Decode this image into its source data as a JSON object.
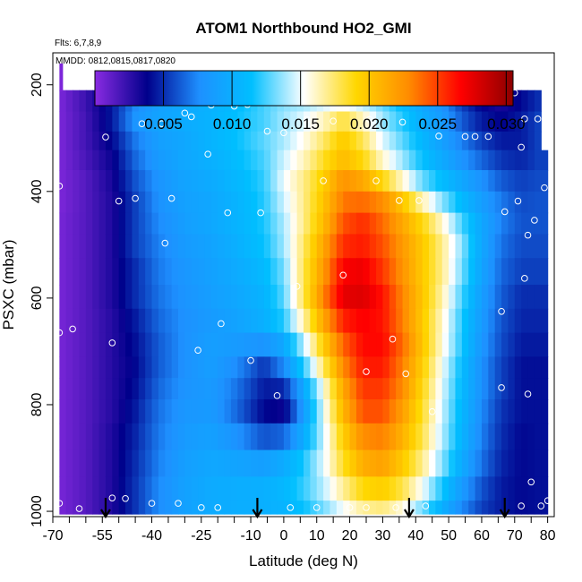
{
  "chart_data": {
    "type": "heatmap",
    "title": "ATOM1 Northbound HO2_GMI",
    "flights_note": "Flts: 6,7,8,9",
    "dates_note": "MMDD: 0812,0815,0817,0820",
    "xlabel": "Latitude (deg N)",
    "ylabel": "PSXC (mbar)",
    "xlim": [
      -70,
      82
    ],
    "ylim": [
      1010,
      140
    ],
    "x_ticks": [
      -70,
      -55,
      -40,
      -25,
      -10,
      0,
      10,
      20,
      30,
      40,
      50,
      60,
      70,
      80
    ],
    "x_tick_labels": [
      "-70",
      "-55",
      "-40",
      "-25",
      "-10",
      "0",
      "10",
      "20",
      "30",
      "40",
      "50",
      "60",
      "70",
      "80"
    ],
    "x_minor_ticks": [
      -65,
      -60,
      -50,
      -45,
      -35,
      -30,
      -20,
      -15,
      -5,
      5,
      15,
      25,
      35,
      45,
      55,
      65,
      75
    ],
    "y_ticks": [
      200,
      400,
      600,
      800,
      1000
    ],
    "y_tick_labels": [
      "200",
      "400",
      "600",
      "800",
      "1000"
    ],
    "colorbar": {
      "range": [
        0,
        0.0305
      ],
      "ticks": [
        0.005,
        0.01,
        0.015,
        0.02,
        0.025,
        0.03
      ],
      "tick_labels": [
        "0.005",
        "0.010",
        "0.015",
        "0.020",
        "0.025",
        "0.030"
      ],
      "colors": [
        "#8a2be2",
        "#00008b",
        "#1e90ff",
        "#00bfff",
        "#ffffff",
        "#ffd700",
        "#ff8c00",
        "#ff0000",
        "#8b0000"
      ]
    },
    "grid": false,
    "pressure_levels": [
      230,
      270,
      305,
      340,
      380,
      420,
      460,
      500,
      550,
      600,
      640,
      690,
      730,
      770,
      810,
      860,
      910,
      960,
      1000
    ],
    "column_lats": [
      -68,
      -60,
      -52,
      -45,
      -38,
      -30,
      -22,
      -14,
      -6,
      0,
      6,
      12,
      18,
      24,
      30,
      36,
      42,
      48,
      54,
      60,
      66,
      72,
      77
    ],
    "field_values": [
      [
        0.0004,
        0.0022,
        0.0045,
        0.0075,
        0.009,
        0.0096,
        0.0104,
        0.0112,
        0.0125,
        0.0135,
        0.014,
        0.0148,
        0.0155,
        0.0145,
        0.013,
        0.0112,
        0.0095,
        0.008,
        0.0055,
        0.0038,
        0.0032,
        0.004,
        0.005
      ],
      [
        0.0004,
        0.002,
        0.0045,
        0.008,
        0.0092,
        0.0098,
        0.0105,
        0.0115,
        0.0125,
        0.0138,
        0.0148,
        0.0162,
        0.0182,
        0.0162,
        0.0138,
        0.012,
        0.01,
        0.0085,
        0.0062,
        0.0045,
        0.0038,
        0.0045,
        0.0055
      ],
      [
        0.0004,
        0.002,
        0.004,
        0.007,
        0.0088,
        0.0095,
        0.0105,
        0.0115,
        0.0128,
        0.014,
        0.0155,
        0.0175,
        0.0198,
        0.0178,
        0.0148,
        0.0128,
        0.0108,
        0.009,
        0.0072,
        0.0055,
        0.0045,
        0.0045,
        0.0055
      ],
      [
        0.0004,
        0.0018,
        0.0035,
        0.0065,
        0.0085,
        0.0095,
        0.0102,
        0.0112,
        0.0125,
        0.0145,
        0.0162,
        0.0185,
        0.0205,
        0.019,
        0.016,
        0.0138,
        0.0115,
        0.0098,
        0.008,
        0.0065,
        0.0052,
        0.0048,
        0.0055
      ],
      [
        0.0004,
        0.0015,
        0.0032,
        0.006,
        0.008,
        0.0092,
        0.0098,
        0.0108,
        0.0122,
        0.015,
        0.017,
        0.0195,
        0.0225,
        0.0215,
        0.019,
        0.016,
        0.013,
        0.0112,
        0.0095,
        0.0078,
        0.0062,
        0.0055,
        0.0058
      ],
      [
        0.0004,
        0.0015,
        0.003,
        0.0055,
        0.0078,
        0.009,
        0.0095,
        0.0105,
        0.012,
        0.0145,
        0.017,
        0.02,
        0.0235,
        0.0238,
        0.0228,
        0.02,
        0.0165,
        0.0135,
        0.011,
        0.0088,
        0.007,
        0.0058,
        0.006
      ],
      [
        0.0005,
        0.0015,
        0.003,
        0.0055,
        0.0075,
        0.0088,
        0.0095,
        0.0105,
        0.0118,
        0.014,
        0.017,
        0.0205,
        0.0245,
        0.0255,
        0.0238,
        0.0215,
        0.019,
        0.016,
        0.0125,
        0.0095,
        0.0072,
        0.006,
        0.006
      ],
      [
        0.0005,
        0.0015,
        0.003,
        0.0055,
        0.0072,
        0.0085,
        0.0092,
        0.0102,
        0.0115,
        0.0138,
        0.0175,
        0.0215,
        0.0255,
        0.026,
        0.0245,
        0.0222,
        0.0198,
        0.017,
        0.0135,
        0.0095,
        0.0068,
        0.0058,
        0.0058
      ],
      [
        0.0005,
        0.0015,
        0.003,
        0.005,
        0.007,
        0.0082,
        0.009,
        0.0098,
        0.011,
        0.0132,
        0.0178,
        0.0222,
        0.0268,
        0.0272,
        0.0252,
        0.0225,
        0.0198,
        0.017,
        0.0132,
        0.0092,
        0.0065,
        0.0055,
        0.0055
      ],
      [
        0.0005,
        0.0015,
        0.003,
        0.005,
        0.0068,
        0.008,
        0.0088,
        0.0095,
        0.0105,
        0.0128,
        0.0178,
        0.023,
        0.0275,
        0.0278,
        0.0262,
        0.023,
        0.02,
        0.0165,
        0.0125,
        0.0088,
        0.0062,
        0.005,
        0.005
      ],
      [
        0.0005,
        0.0015,
        0.0028,
        0.0045,
        0.0065,
        0.0078,
        0.0085,
        0.0092,
        0.0102,
        0.012,
        0.0165,
        0.0215,
        0.0258,
        0.0268,
        0.0262,
        0.0232,
        0.0198,
        0.016,
        0.012,
        0.0085,
        0.006,
        0.0048,
        0.0048
      ],
      [
        0.0005,
        0.0015,
        0.0028,
        0.0042,
        0.0062,
        0.0078,
        0.0088,
        0.0085,
        0.008,
        0.0095,
        0.0142,
        0.0195,
        0.024,
        0.0265,
        0.0265,
        0.0238,
        0.02,
        0.0158,
        0.0118,
        0.0082,
        0.0058,
        0.0045,
        0.0045
      ],
      [
        0.0005,
        0.0015,
        0.0028,
        0.004,
        0.0062,
        0.0078,
        0.0088,
        0.0075,
        0.0052,
        0.0075,
        0.012,
        0.0175,
        0.0228,
        0.026,
        0.026,
        0.0232,
        0.0195,
        0.0152,
        0.0112,
        0.0078,
        0.0055,
        0.0042,
        0.0042
      ],
      [
        0.0005,
        0.0015,
        0.0028,
        0.0042,
        0.0065,
        0.008,
        0.0085,
        0.0068,
        0.0045,
        0.0048,
        0.0095,
        0.0155,
        0.0215,
        0.0252,
        0.0252,
        0.0228,
        0.019,
        0.0148,
        0.011,
        0.0078,
        0.0055,
        0.0042,
        0.0042
      ],
      [
        0.0005,
        0.0015,
        0.0028,
        0.0045,
        0.0068,
        0.0082,
        0.0085,
        0.0065,
        0.004,
        0.0035,
        0.0085,
        0.0148,
        0.0208,
        0.0245,
        0.0245,
        0.022,
        0.0185,
        0.0145,
        0.0108,
        0.0075,
        0.0052,
        0.0042,
        0.0042
      ],
      [
        0.0005,
        0.0015,
        0.003,
        0.0048,
        0.007,
        0.0085,
        0.009,
        0.0078,
        0.006,
        0.0065,
        0.0098,
        0.0145,
        0.0195,
        0.0228,
        0.0232,
        0.021,
        0.018,
        0.0142,
        0.0105,
        0.0072,
        0.005,
        0.004,
        0.0042
      ],
      [
        0.0005,
        0.0015,
        0.003,
        0.005,
        0.0072,
        0.0088,
        0.0095,
        0.0092,
        0.0088,
        0.0098,
        0.0118,
        0.0148,
        0.0185,
        0.0212,
        0.0218,
        0.0198,
        0.017,
        0.0135,
        0.0098,
        0.0068,
        0.0048,
        0.004,
        0.0042
      ],
      [
        0.0005,
        0.0015,
        0.003,
        0.0052,
        0.0075,
        0.009,
        0.0098,
        0.01,
        0.0102,
        0.0108,
        0.0122,
        0.0142,
        0.0168,
        0.019,
        0.0195,
        0.018,
        0.0152,
        0.0118,
        0.0085,
        0.006,
        0.0045,
        0.004,
        0.0042
      ],
      [
        0.0005,
        0.0015,
        0.003,
        0.0052,
        0.0075,
        0.009,
        0.0098,
        0.01,
        0.0102,
        0.0105,
        0.0115,
        0.0132,
        0.0152,
        0.0168,
        0.0172,
        0.0158,
        0.0132,
        0.0102,
        0.0075,
        0.0055,
        0.0045,
        0.004,
        0.0042
      ]
    ],
    "obs_points": [
      {
        "lat": -68,
        "p": 390
      },
      {
        "lat": -68,
        "p": 665
      },
      {
        "lat": -68,
        "p": 985
      },
      {
        "lat": -64,
        "p": 658
      },
      {
        "lat": -62,
        "p": 995
      },
      {
        "lat": -54,
        "p": 298
      },
      {
        "lat": -52,
        "p": 684
      },
      {
        "lat": -52,
        "p": 975
      },
      {
        "lat": -50,
        "p": 418
      },
      {
        "lat": -48,
        "p": 976
      },
      {
        "lat": -45,
        "p": 413
      },
      {
        "lat": -43,
        "p": 273
      },
      {
        "lat": -40,
        "p": 985
      },
      {
        "lat": -37,
        "p": 273
      },
      {
        "lat": -36,
        "p": 497
      },
      {
        "lat": -34,
        "p": 413
      },
      {
        "lat": -32,
        "p": 985
      },
      {
        "lat": -30,
        "p": 253
      },
      {
        "lat": -28,
        "p": 260
      },
      {
        "lat": -26,
        "p": 698
      },
      {
        "lat": -25,
        "p": 993
      },
      {
        "lat": -23,
        "p": 330
      },
      {
        "lat": -22,
        "p": 238
      },
      {
        "lat": -20,
        "p": 993
      },
      {
        "lat": -19,
        "p": 648
      },
      {
        "lat": -17,
        "p": 440
      },
      {
        "lat": -15,
        "p": 240
      },
      {
        "lat": -11,
        "p": 237
      },
      {
        "lat": -10,
        "p": 717
      },
      {
        "lat": -7,
        "p": 440
      },
      {
        "lat": -5,
        "p": 287
      },
      {
        "lat": -2,
        "p": 783
      },
      {
        "lat": 0,
        "p": 290
      },
      {
        "lat": 2,
        "p": 993
      },
      {
        "lat": 4,
        "p": 578
      },
      {
        "lat": 7,
        "p": 265
      },
      {
        "lat": 10,
        "p": 993
      },
      {
        "lat": 12,
        "p": 380
      },
      {
        "lat": 15,
        "p": 268
      },
      {
        "lat": 18,
        "p": 557
      },
      {
        "lat": 20,
        "p": 993
      },
      {
        "lat": 25,
        "p": 738
      },
      {
        "lat": 25,
        "p": 993
      },
      {
        "lat": 26,
        "p": 265
      },
      {
        "lat": 28,
        "p": 380
      },
      {
        "lat": 32,
        "p": 228
      },
      {
        "lat": 33,
        "p": 677
      },
      {
        "lat": 34,
        "p": 993
      },
      {
        "lat": 35,
        "p": 417
      },
      {
        "lat": 36,
        "p": 270
      },
      {
        "lat": 37,
        "p": 742
      },
      {
        "lat": 41,
        "p": 417
      },
      {
        "lat": 43,
        "p": 990
      },
      {
        "lat": 45,
        "p": 813
      },
      {
        "lat": 47,
        "p": 296
      },
      {
        "lat": 55,
        "p": 297
      },
      {
        "lat": 58,
        "p": 297
      },
      {
        "lat": 62,
        "p": 297
      },
      {
        "lat": 66,
        "p": 625
      },
      {
        "lat": 66,
        "p": 768
      },
      {
        "lat": 67,
        "p": 438
      },
      {
        "lat": 70,
        "p": 215
      },
      {
        "lat": 71,
        "p": 418
      },
      {
        "lat": 72,
        "p": 990
      },
      {
        "lat": 72,
        "p": 317
      },
      {
        "lat": 73,
        "p": 264
      },
      {
        "lat": 73,
        "p": 563
      },
      {
        "lat": 74,
        "p": 780
      },
      {
        "lat": 74,
        "p": 482
      },
      {
        "lat": 75,
        "p": 945
      },
      {
        "lat": 76,
        "p": 454
      },
      {
        "lat": 77,
        "p": 264
      },
      {
        "lat": 79,
        "p": 393
      },
      {
        "lat": 80,
        "p": 980
      },
      {
        "lat": 78,
        "p": 990
      }
    ],
    "arrow_lats": [
      -54,
      -8,
      38,
      67
    ]
  }
}
